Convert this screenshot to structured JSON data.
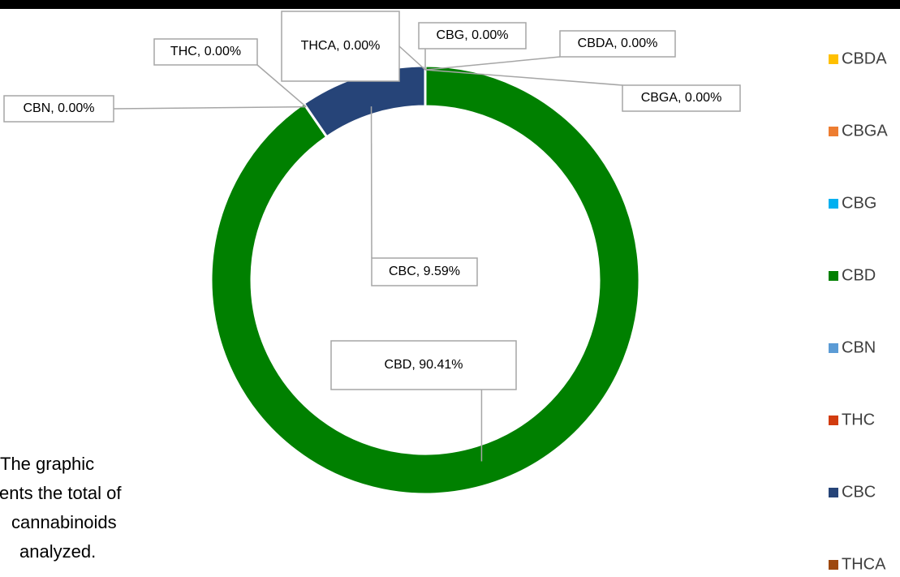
{
  "chart_data": {
    "type": "doughnut",
    "categories": [
      "CBDA",
      "CBGA",
      "CBG",
      "CBD",
      "CBN",
      "THC",
      "CBC",
      "THCA"
    ],
    "values": [
      0,
      0,
      0,
      90.41,
      0,
      0,
      9.59,
      0
    ],
    "value_labels": [
      "CBDA, 0.00%",
      "CBGA, 0.00%",
      "CBG, 0.00%",
      "CBD, 90.41%",
      "CBN, 0.00%",
      "THC, 0.00%",
      "CBC, 9.59%",
      "THCA, 0.00%"
    ],
    "colors": [
      "#ffc000",
      "#ed7d31",
      "#00b0f0",
      "#008000",
      "#5b9bd5",
      "#d23c0f",
      "#264478",
      "#9e480e"
    ],
    "legend": "right",
    "note": [
      "The graphic",
      "sents the total of",
      "cannabinoids",
      "analyzed."
    ]
  }
}
